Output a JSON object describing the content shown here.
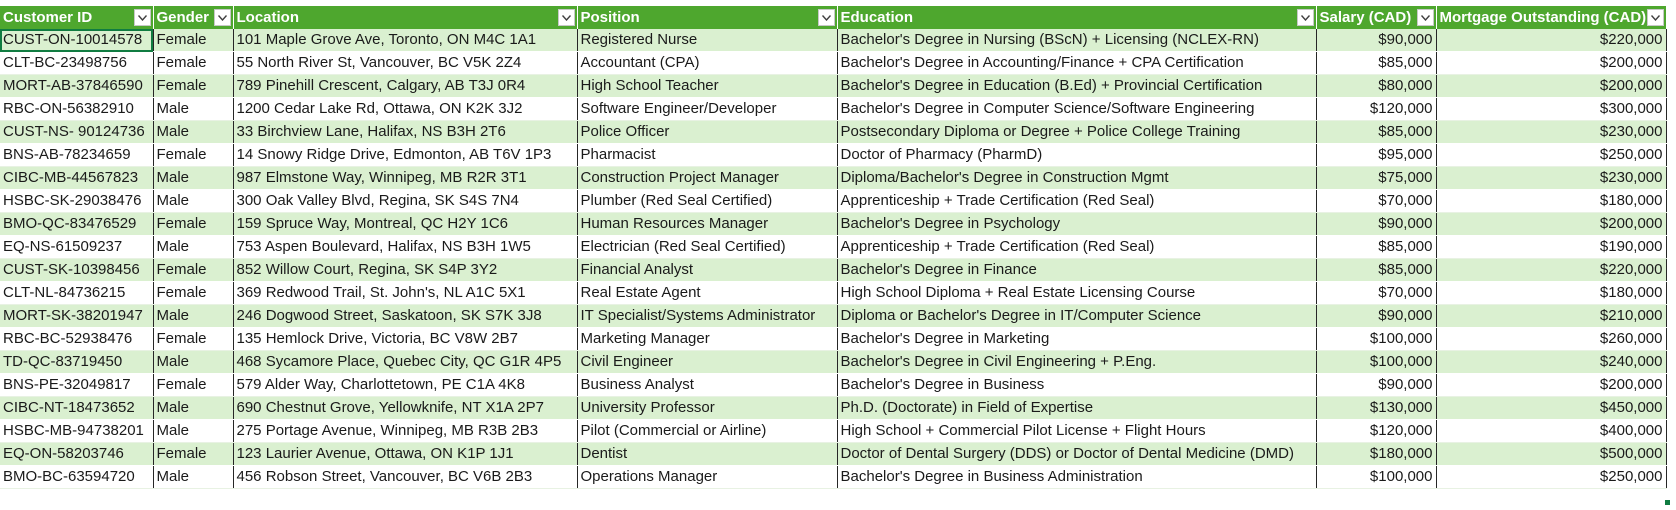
{
  "columns": [
    {
      "key": "customer_id",
      "label": "Customer ID",
      "filter_icon": "dropdown-arrow-icon"
    },
    {
      "key": "gender",
      "label": "Gender",
      "filter_icon": "dropdown-arrow-icon"
    },
    {
      "key": "location",
      "label": "Location",
      "filter_icon": "dropdown-arrow-icon"
    },
    {
      "key": "position",
      "label": "Position",
      "filter_icon": "dropdown-arrow-icon"
    },
    {
      "key": "education",
      "label": "Education",
      "filter_icon": "dropdown-arrow-icon"
    },
    {
      "key": "salary",
      "label": "Salary (CAD)",
      "filter_icon": "dropdown-arrow-icon"
    },
    {
      "key": "mortgage",
      "label": "Mortgage Outstanding (CAD)",
      "filter_icon": "dropdown-arrow-icon"
    }
  ],
  "rows": [
    {
      "customer_id": "CUST-ON-10014578",
      "gender": "Female",
      "location": "101 Maple Grove Ave, Toronto, ON M4C 1A1",
      "position": "Registered Nurse",
      "education": "Bachelor's Degree in Nursing (BScN) + Licensing (NCLEX-RN)",
      "salary": "$90,000",
      "mortgage": "$220,000"
    },
    {
      "customer_id": "CLT-BC-23498756",
      "gender": "Female",
      "location": "55 North River St, Vancouver, BC V5K 2Z4",
      "position": "Accountant (CPA)",
      "education": "Bachelor's Degree in Accounting/Finance + CPA Certification",
      "salary": "$85,000",
      "mortgage": "$200,000"
    },
    {
      "customer_id": "MORT-AB-37846590",
      "gender": "Female",
      "location": "789 Pinehill Crescent, Calgary, AB T3J 0R4",
      "position": "High School Teacher",
      "education": "Bachelor's Degree in Education (B.Ed) + Provincial Certification",
      "salary": "$80,000",
      "mortgage": "$200,000"
    },
    {
      "customer_id": "RBC-ON-56382910",
      "gender": "Male",
      "location": "1200 Cedar Lake Rd, Ottawa, ON K2K 3J2",
      "position": "Software Engineer/Developer",
      "education": "Bachelor's Degree in Computer Science/Software Engineering",
      "salary": "$120,000",
      "mortgage": "$300,000"
    },
    {
      "customer_id": "CUST-NS- 90124736",
      "gender": "Male",
      "location": "33 Birchview Lane, Halifax, NS B3H 2T6",
      "position": "Police Officer",
      "education": "Postsecondary Diploma or Degree + Police College Training",
      "salary": "$85,000",
      "mortgage": "$230,000"
    },
    {
      "customer_id": "BNS-AB-78234659",
      "gender": "Female",
      "location": "14 Snowy Ridge Drive, Edmonton, AB T6V 1P3",
      "position": "Pharmacist",
      "education": "Doctor of Pharmacy (PharmD)",
      "salary": "$95,000",
      "mortgage": "$250,000"
    },
    {
      "customer_id": "CIBC-MB-44567823",
      "gender": "Male",
      "location": "987 Elmstone Way, Winnipeg, MB R2R 3T1",
      "position": "Construction Project Manager",
      "education": "Diploma/Bachelor's Degree in Construction Mgmt",
      "salary": "$75,000",
      "mortgage": "$230,000"
    },
    {
      "customer_id": "HSBC-SK-29038476",
      "gender": "Male",
      "location": "300 Oak Valley Blvd, Regina, SK S4S 7N4",
      "position": "Plumber (Red Seal Certified)",
      "education": "Apprenticeship + Trade Certification (Red Seal)",
      "salary": "$70,000",
      "mortgage": "$180,000"
    },
    {
      "customer_id": "BMO-QC-83476529",
      "gender": "Female",
      "location": "159 Spruce Way, Montreal, QC H2Y 1C6",
      "position": "Human Resources Manager",
      "education": "Bachelor's Degree in Psychology",
      "salary": "$90,000",
      "mortgage": "$200,000"
    },
    {
      "customer_id": "EQ-NS-61509237",
      "gender": "Male",
      "location": "753 Aspen Boulevard, Halifax, NS B3H 1W5",
      "position": "Electrician (Red Seal Certified)",
      "education": "Apprenticeship + Trade Certification (Red Seal)",
      "salary": "$85,000",
      "mortgage": "$190,000"
    },
    {
      "customer_id": "CUST-SK-10398456",
      "gender": "Female",
      "location": "852 Willow Court, Regina, SK S4P 3Y2",
      "position": "Financial Analyst",
      "education": "Bachelor's Degree in Finance",
      "salary": "$85,000",
      "mortgage": "$220,000"
    },
    {
      "customer_id": "CLT-NL-84736215",
      "gender": "Female",
      "location": "369 Redwood Trail, St. John's, NL A1C 5X1",
      "position": "Real Estate Agent",
      "education": "High School Diploma + Real Estate Licensing Course",
      "salary": "$70,000",
      "mortgage": "$180,000"
    },
    {
      "customer_id": "MORT-SK-38201947",
      "gender": "Male",
      "location": "246 Dogwood Street, Saskatoon, SK S7K 3J8",
      "position": "IT Specialist/Systems Administrator",
      "education": "Diploma or Bachelor's Degree in IT/Computer Science",
      "salary": "$90,000",
      "mortgage": "$210,000"
    },
    {
      "customer_id": "RBC-BC-52938476",
      "gender": "Female",
      "location": "135 Hemlock Drive, Victoria, BC V8W 2B7",
      "position": "Marketing Manager",
      "education": "Bachelor's Degree in Marketing",
      "salary": "$100,000",
      "mortgage": "$260,000"
    },
    {
      "customer_id": "TD-QC-83719450",
      "gender": "Male",
      "location": "468 Sycamore Place, Quebec City, QC G1R 4P5",
      "position": "Civil Engineer",
      "education": "Bachelor's Degree in Civil Engineering + P.Eng.",
      "salary": "$100,000",
      "mortgage": "$240,000"
    },
    {
      "customer_id": "BNS-PE-32049817",
      "gender": "Female",
      "location": "579 Alder Way, Charlottetown, PE C1A 4K8",
      "position": "Business Analyst",
      "education": "Bachelor's Degree in Business",
      "salary": "$90,000",
      "mortgage": "$200,000"
    },
    {
      "customer_id": "CIBC-NT-18473652",
      "gender": "Male",
      "location": "690 Chestnut Grove, Yellowknife, NT X1A 2P7",
      "position": "University Professor",
      "education": "Ph.D. (Doctorate) in Field of Expertise",
      "salary": "$130,000",
      "mortgage": "$450,000"
    },
    {
      "customer_id": "HSBC-MB-94738201",
      "gender": "Male",
      "location": "275 Portage Avenue, Winnipeg, MB R3B 2B3",
      "position": "Pilot (Commercial or Airline)",
      "education": "High School + Commercial Pilot License + Flight Hours",
      "salary": "$120,000",
      "mortgage": "$400,000"
    },
    {
      "customer_id": "EQ-ON-58203746",
      "gender": "Female",
      "location": "123 Laurier Avenue, Ottawa, ON K1P 1J1",
      "position": "Dentist",
      "education": "Doctor of Dental Surgery (DDS) or Doctor of Dental Medicine (DMD)",
      "salary": "$180,000",
      "mortgage": "$500,000"
    },
    {
      "customer_id": "BMO-BC-63594720",
      "gender": "Male",
      "location": "456 Robson Street, Vancouver, BC V6B 2B3",
      "position": "Operations Manager",
      "education": "Bachelor's Degree in Business Administration",
      "salary": "$100,000",
      "mortgage": "$250,000"
    }
  ],
  "colors": {
    "header_bg": "#4ea72e",
    "band_bg": "#daf0d0",
    "selection": "#107c41"
  }
}
